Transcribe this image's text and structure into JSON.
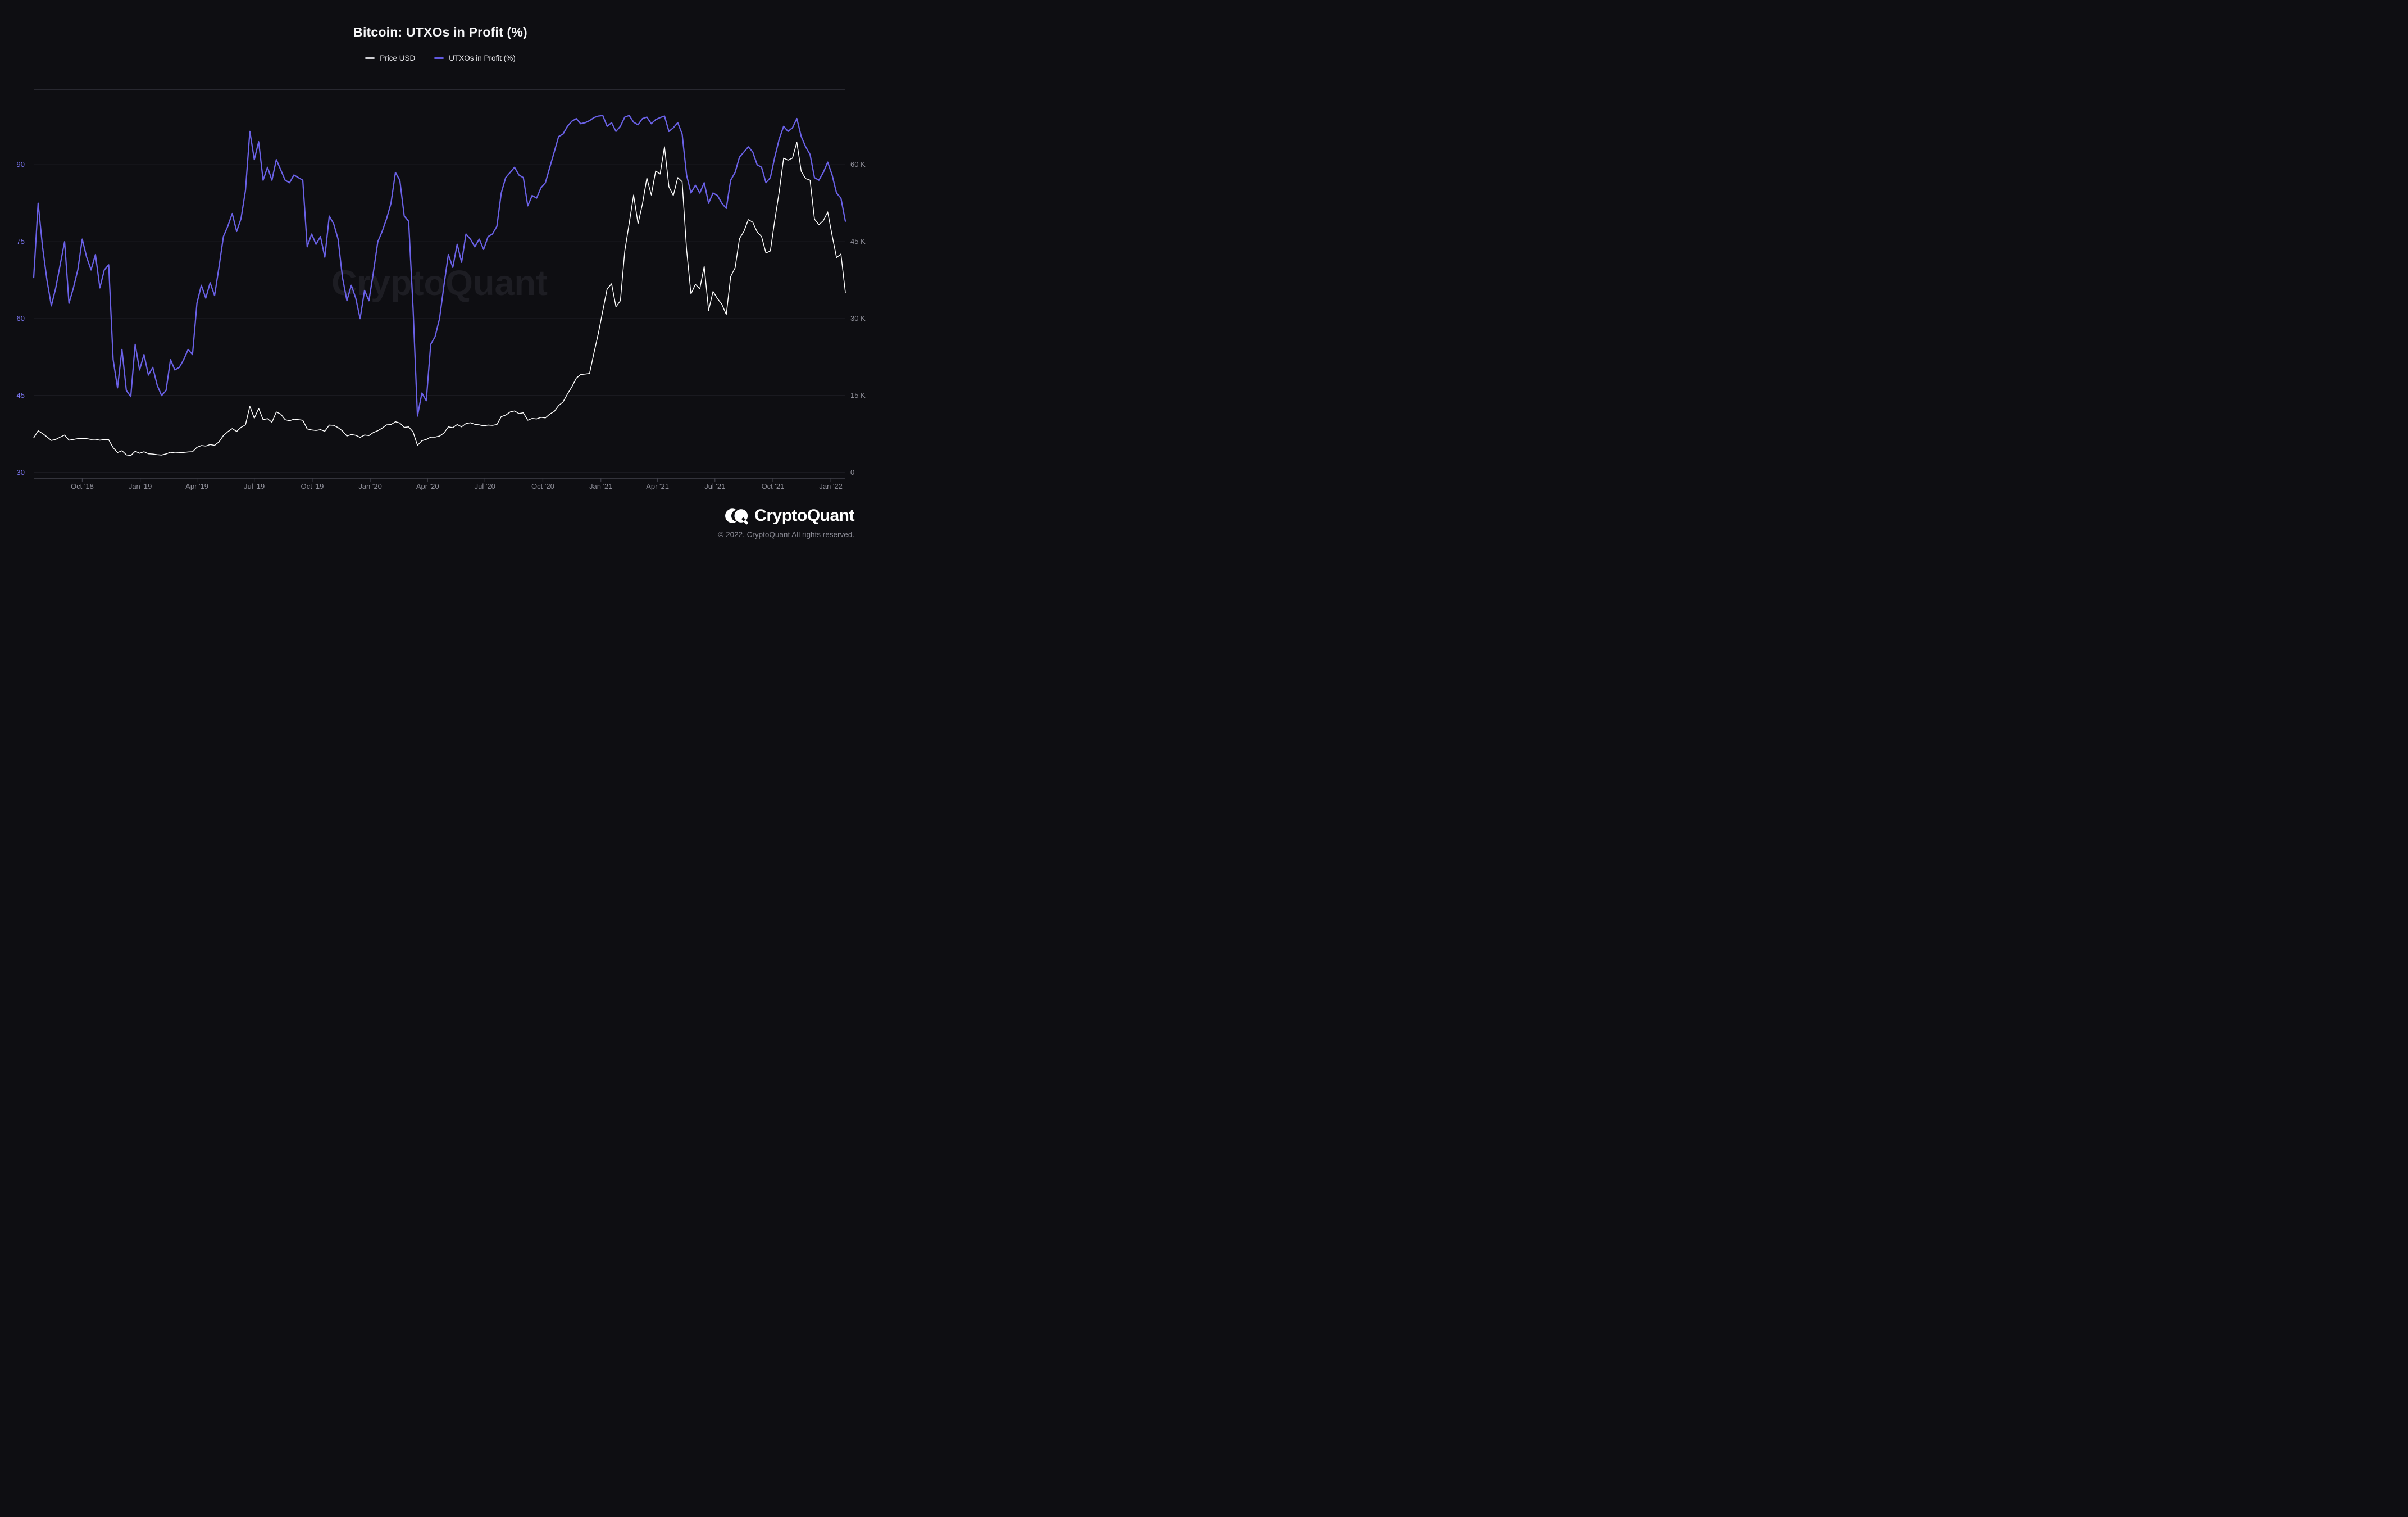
{
  "header": {
    "title": "Bitcoin: UTXOs in Profit (%)"
  },
  "legend": {
    "items": [
      {
        "label": "Price USD",
        "color": "#cfcfd4"
      },
      {
        "label": "UTXOs in Profit (%)",
        "color": "#6159e0"
      }
    ]
  },
  "watermark": "CryptoQuant",
  "footer": {
    "brand": "CryptoQuant",
    "copyright": "© 2022. CryptoQuant All rights reserved."
  },
  "theme": {
    "background": "#0e0e12",
    "grid_color": "#26262e",
    "plot_top_border": "#30303a",
    "axis_line_color": "#41414b",
    "left_axis_label_color": "#7b76f0",
    "right_axis_label_color": "#8f8f99",
    "price_line_color": "#ffffff",
    "utxo_line_color": "#6a61e6"
  },
  "chart_data": {
    "type": "line",
    "title": "Bitcoin: UTXOs in Profit (%)",
    "start_date": "2018-07-16",
    "interval_days": 7,
    "grid": true,
    "legend_position": "top",
    "y_axis_left": {
      "label": "UTXOs in Profit (%)",
      "ticks": [
        {
          "label": "90",
          "value": 90
        },
        {
          "label": "75",
          "value": 75
        },
        {
          "label": "60",
          "value": 60
        },
        {
          "label": "45",
          "value": 45
        },
        {
          "label": "30",
          "value": 30
        }
      ],
      "ylim": [
        28.9,
        104.6
      ]
    },
    "y_axis_right": {
      "label": "Price USD",
      "ticks": [
        {
          "label": "60 K",
          "value": 90
        },
        {
          "label": "45 K",
          "value": 75
        },
        {
          "label": "30 K",
          "value": 60
        },
        {
          "label": "15 K",
          "value": 45
        },
        {
          "label": "0",
          "value": 30
        }
      ],
      "mapping": "left_value = 30 + price_usd / 1000"
    },
    "x_ticks": [
      {
        "label": "Oct '18",
        "t": 0.0598
      },
      {
        "label": "Jan '19",
        "t": 0.1312
      },
      {
        "label": "Apr '19",
        "t": 0.2011
      },
      {
        "label": "Jul '19",
        "t": 0.2717
      },
      {
        "label": "Oct '19",
        "t": 0.3432
      },
      {
        "label": "Jan '20",
        "t": 0.4146
      },
      {
        "label": "Apr '20",
        "t": 0.4853
      },
      {
        "label": "Jul '20",
        "t": 0.5559
      },
      {
        "label": "Oct '20",
        "t": 0.6273
      },
      {
        "label": "Jan '21",
        "t": 0.6988
      },
      {
        "label": "Apr '21",
        "t": 0.7686
      },
      {
        "label": "Jul '21",
        "t": 0.8393
      },
      {
        "label": "Oct '21",
        "t": 0.9107
      },
      {
        "label": "Jan '22",
        "t": 0.9821
      }
    ],
    "series": [
      {
        "name": "Price USD",
        "unit": "USD",
        "axis": "right",
        "color": "#ffffff",
        "values": [
          6750,
          8150,
          7600,
          6950,
          6250,
          6450,
          6900,
          7300,
          6300,
          6450,
          6600,
          6620,
          6590,
          6450,
          6480,
          6300,
          6430,
          6380,
          4850,
          3900,
          4250,
          3450,
          3300,
          4150,
          3750,
          4050,
          3650,
          3600,
          3480,
          3400,
          3620,
          3950,
          3820,
          3850,
          3920,
          4010,
          4050,
          4900,
          5250,
          5150,
          5450,
          5300,
          5950,
          7200,
          7950,
          8550,
          8000,
          8800,
          9300,
          12900,
          10600,
          12500,
          10300,
          10500,
          9800,
          11800,
          11400,
          10300,
          10100,
          10400,
          10300,
          10200,
          8500,
          8300,
          8200,
          8350,
          8050,
          9250,
          9200,
          8750,
          8100,
          7100,
          7400,
          7250,
          6850,
          7300,
          7200,
          7800,
          8150,
          8650,
          9300,
          9350,
          9900,
          9650,
          8800,
          8900,
          7900,
          5300,
          6200,
          6450,
          6900,
          6900,
          7100,
          7700,
          8900,
          8750,
          9350,
          8900,
          9550,
          9700,
          9400,
          9300,
          9100,
          9250,
          9200,
          9350,
          10900,
          11200,
          11800,
          12000,
          11500,
          11650,
          10200,
          10550,
          10450,
          10750,
          10650,
          11400,
          11900,
          13050,
          13750,
          15300,
          16700,
          18400,
          19100,
          19200,
          19300,
          23300,
          27100,
          31500,
          35800,
          36800,
          32300,
          33500,
          43200,
          48600,
          54100,
          48500,
          52400,
          57400,
          54100,
          58800,
          58200,
          63500,
          55700,
          54000,
          57500,
          56700,
          43500,
          34800,
          36700,
          35800,
          40200,
          31600,
          35300,
          33900,
          32800,
          30800,
          38200,
          39900,
          45600,
          47000,
          49300,
          48800,
          46900,
          46000,
          42800,
          43200,
          49200,
          54700,
          61300,
          60900,
          61300,
          64400,
          58700,
          57300,
          57000,
          49400,
          48300,
          49100,
          50800,
          46200,
          41900,
          42600,
          35100
        ]
      },
      {
        "name": "UTXOs in Profit (%)",
        "unit": "%",
        "axis": "left",
        "color": "#6a61e6",
        "values": [
          68,
          82.5,
          74,
          67.5,
          62.5,
          66,
          70.5,
          75,
          63,
          66,
          69.5,
          75.5,
          72,
          69.5,
          72.5,
          66,
          69.5,
          70.5,
          52,
          46.5,
          54,
          46,
          44.8,
          55,
          50,
          53,
          49,
          50.5,
          47,
          45,
          46,
          52,
          50,
          50.5,
          52,
          54,
          53,
          63,
          66.5,
          64,
          67,
          64.5,
          70,
          76,
          78,
          80.5,
          77,
          79.5,
          85,
          96.5,
          91,
          94.5,
          87,
          89.5,
          87,
          91,
          89,
          87,
          86.5,
          88,
          87.5,
          87,
          74,
          76.5,
          74.5,
          76,
          72,
          80,
          78.5,
          75.5,
          68,
          63.5,
          66.5,
          64,
          60,
          65.5,
          63.5,
          69,
          75,
          77,
          79.5,
          82.5,
          88.5,
          87,
          80,
          79,
          62,
          41,
          45.5,
          44,
          55,
          56.5,
          60,
          66.5,
          72.5,
          70,
          74.5,
          71,
          76.5,
          75.5,
          74,
          75.5,
          73.5,
          76,
          76.5,
          78,
          84.5,
          87.5,
          88.5,
          89.5,
          88,
          87.5,
          82,
          84,
          83.5,
          85.5,
          86.5,
          89.5,
          92.5,
          95.5,
          96,
          97.5,
          98.5,
          99,
          98,
          98.2,
          98.6,
          99.2,
          99.5,
          99.6,
          97.5,
          98.2,
          96.5,
          97.5,
          99.3,
          99.6,
          98.3,
          97.8,
          99,
          99.3,
          98,
          98.8,
          99.2,
          99.5,
          96.5,
          97.2,
          98.2,
          96,
          88,
          84.5,
          86,
          84.5,
          86.5,
          82.5,
          84.5,
          84,
          82.5,
          81.5,
          87,
          88.5,
          91.5,
          92.5,
          93.5,
          92.5,
          90,
          89.5,
          86.5,
          87.5,
          91.5,
          95,
          97.5,
          96.5,
          97.2,
          99,
          95.5,
          93.5,
          92,
          87.5,
          87,
          88.5,
          90.5,
          88,
          84.5,
          83.5,
          79
        ]
      }
    ]
  }
}
